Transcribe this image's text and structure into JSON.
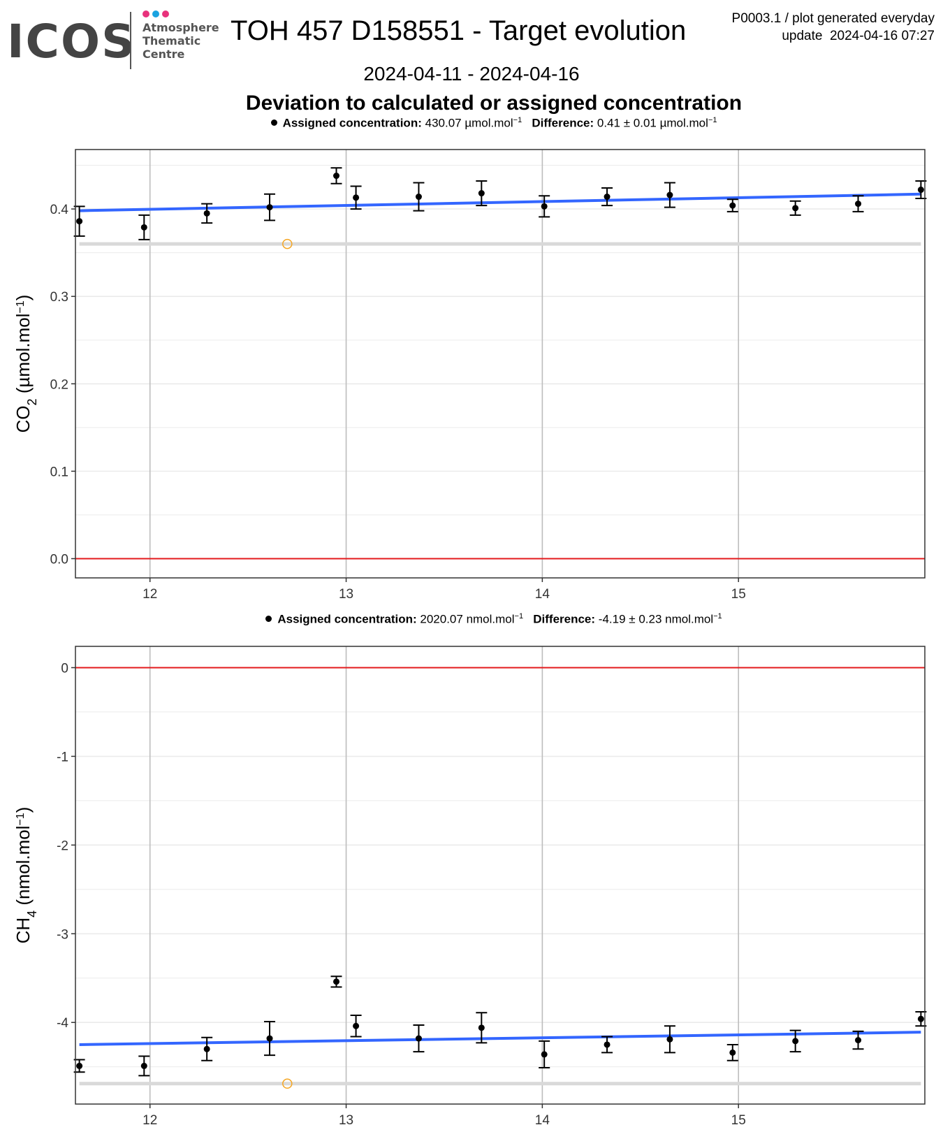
{
  "header": {
    "logo_text": "ICOS",
    "logo_sub": [
      "Atmosphere",
      "Thematic",
      "Centre"
    ],
    "logo_dot_colors": [
      "#e8327c",
      "#1aa3e0",
      "#e8327c"
    ],
    "title": "TOH 457 D158551 - Target evolution",
    "date_range": "2024-04-11 - 2024-04-16",
    "meta_line1": "P0003.1 / plot generated everyday",
    "meta_line2": "update  2024-04-16 07:27",
    "subtitle": "Deviation to calculated or assigned concentration"
  },
  "colors": {
    "trend": "#3366ff",
    "zero_line": "#e31a1c",
    "reference_band": "#d9d9d9",
    "outlier": "#f5a623",
    "points": "#000000",
    "grid": "#ebebeb",
    "x_grid": "#bdbdbd"
  },
  "chart_data": [
    {
      "type": "scatter",
      "legend": {
        "assigned_label": "Assigned concentration:",
        "assigned_value": "430.07 µmol.mol",
        "assigned_sup": "−1",
        "difference_label": "Difference:",
        "difference_value": "0.41 ± 0.01 µmol.mol",
        "difference_sup": "−1"
      },
      "ylabel": "CO₂ (µmol.mol⁻¹)",
      "ylabel_main": "CO",
      "ylabel_sub": "2",
      "ylabel_unit": " (µmol.mol",
      "ylabel_sup": "−1",
      "ylabel_close": ")",
      "xlim": [
        11.62,
        15.95
      ],
      "ylim": [
        -0.022,
        0.468
      ],
      "x_ticks": [
        12,
        13,
        14,
        15
      ],
      "x_tick_labels": [
        "12",
        "13",
        "14",
        "15"
      ],
      "y_ticks": [
        0.0,
        0.1,
        0.2,
        0.3,
        0.4
      ],
      "y_tick_labels": [
        "0.0",
        "0.1",
        "0.2",
        "0.3",
        "0.4"
      ],
      "points": [
        {
          "x": 11.64,
          "y": 0.386,
          "err": 0.017
        },
        {
          "x": 11.97,
          "y": 0.379,
          "err": 0.014
        },
        {
          "x": 12.29,
          "y": 0.395,
          "err": 0.011
        },
        {
          "x": 12.61,
          "y": 0.402,
          "err": 0.015
        },
        {
          "x": 12.95,
          "y": 0.438,
          "err": 0.009
        },
        {
          "x": 13.05,
          "y": 0.413,
          "err": 0.013
        },
        {
          "x": 13.37,
          "y": 0.414,
          "err": 0.016
        },
        {
          "x": 13.69,
          "y": 0.418,
          "err": 0.014
        },
        {
          "x": 14.01,
          "y": 0.403,
          "err": 0.012
        },
        {
          "x": 14.33,
          "y": 0.414,
          "err": 0.01
        },
        {
          "x": 14.65,
          "y": 0.416,
          "err": 0.014
        },
        {
          "x": 14.97,
          "y": 0.404,
          "err": 0.007
        },
        {
          "x": 15.29,
          "y": 0.401,
          "err": 0.008
        },
        {
          "x": 15.61,
          "y": 0.406,
          "err": 0.009
        },
        {
          "x": 15.93,
          "y": 0.422,
          "err": 0.01
        }
      ],
      "outlier": {
        "x": 12.7,
        "y": 0.36
      },
      "reference_level": 0.36,
      "trend": {
        "x": [
          11.64,
          15.93
        ],
        "y": [
          0.398,
          0.417
        ]
      },
      "zero_line": 0.0
    },
    {
      "type": "scatter",
      "legend": {
        "assigned_label": "Assigned concentration:",
        "assigned_value": "2020.07 nmol.mol",
        "assigned_sup": "−1",
        "difference_label": "Difference:",
        "difference_value": "-4.19 ± 0.23 nmol.mol",
        "difference_sup": "−1"
      },
      "ylabel": "CH₄ (nmol.mol⁻¹)",
      "ylabel_main": "CH",
      "ylabel_sub": "4",
      "ylabel_unit": " (nmol.mol",
      "ylabel_sup": "−1",
      "ylabel_close": ")",
      "xlim": [
        11.62,
        15.95
      ],
      "ylim": [
        -4.92,
        0.24
      ],
      "x_ticks": [
        12,
        13,
        14,
        15
      ],
      "x_tick_labels": [
        "12",
        "13",
        "14",
        "15"
      ],
      "y_ticks": [
        0,
        -1,
        -2,
        -3,
        -4
      ],
      "y_tick_labels": [
        "0",
        "-1",
        "-2",
        "-3",
        "-4"
      ],
      "points": [
        {
          "x": 11.64,
          "y": -4.49,
          "err": 0.07
        },
        {
          "x": 11.97,
          "y": -4.49,
          "err": 0.11
        },
        {
          "x": 12.29,
          "y": -4.3,
          "err": 0.13
        },
        {
          "x": 12.61,
          "y": -4.18,
          "err": 0.19
        },
        {
          "x": 12.95,
          "y": -3.54,
          "err": 0.06
        },
        {
          "x": 13.05,
          "y": -4.04,
          "err": 0.12
        },
        {
          "x": 13.37,
          "y": -4.18,
          "err": 0.15
        },
        {
          "x": 13.69,
          "y": -4.06,
          "err": 0.17
        },
        {
          "x": 14.01,
          "y": -4.36,
          "err": 0.15
        },
        {
          "x": 14.33,
          "y": -4.25,
          "err": 0.09
        },
        {
          "x": 14.65,
          "y": -4.19,
          "err": 0.15
        },
        {
          "x": 14.97,
          "y": -4.34,
          "err": 0.09
        },
        {
          "x": 15.29,
          "y": -4.21,
          "err": 0.12
        },
        {
          "x": 15.61,
          "y": -4.2,
          "err": 0.1
        },
        {
          "x": 15.93,
          "y": -3.96,
          "err": 0.08
        }
      ],
      "outlier": {
        "x": 12.7,
        "y": -4.69
      },
      "reference_level": -4.69,
      "trend": {
        "x": [
          11.64,
          15.93
        ],
        "y": [
          -4.25,
          -4.11
        ]
      },
      "zero_line": 0
    }
  ]
}
